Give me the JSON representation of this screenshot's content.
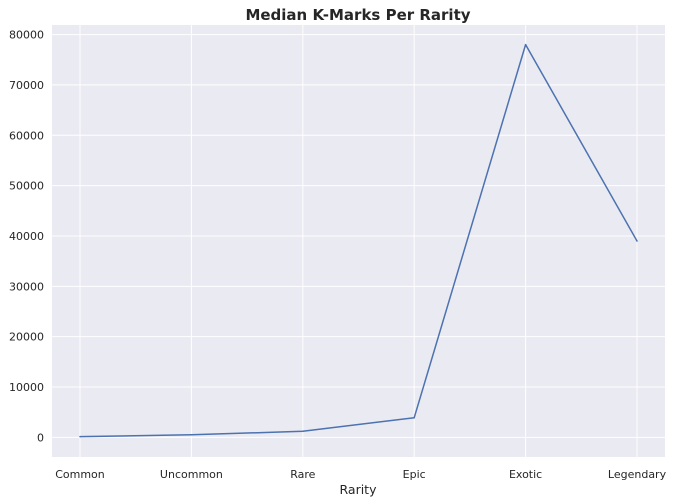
{
  "chart_data": {
    "type": "line",
    "title": "Median K-Marks Per Rarity",
    "xlabel": "Rarity",
    "ylabel": "",
    "categories": [
      "Common",
      "Uncommon",
      "Rare",
      "Epic",
      "Exotic",
      "Legendary"
    ],
    "series": [
      {
        "values": [
          150,
          500,
          1200,
          3900,
          78000,
          39000
        ]
      }
    ],
    "ylim": [
      -3900,
      81900
    ],
    "yticks": [
      0,
      10000,
      20000,
      30000,
      40000,
      50000,
      60000,
      70000,
      80000
    ],
    "grid": true,
    "legend": "none",
    "colors": {
      "background": "#eaeaf2",
      "grid": "#ffffff",
      "line": "#4c72b0",
      "text": "#262626"
    }
  }
}
